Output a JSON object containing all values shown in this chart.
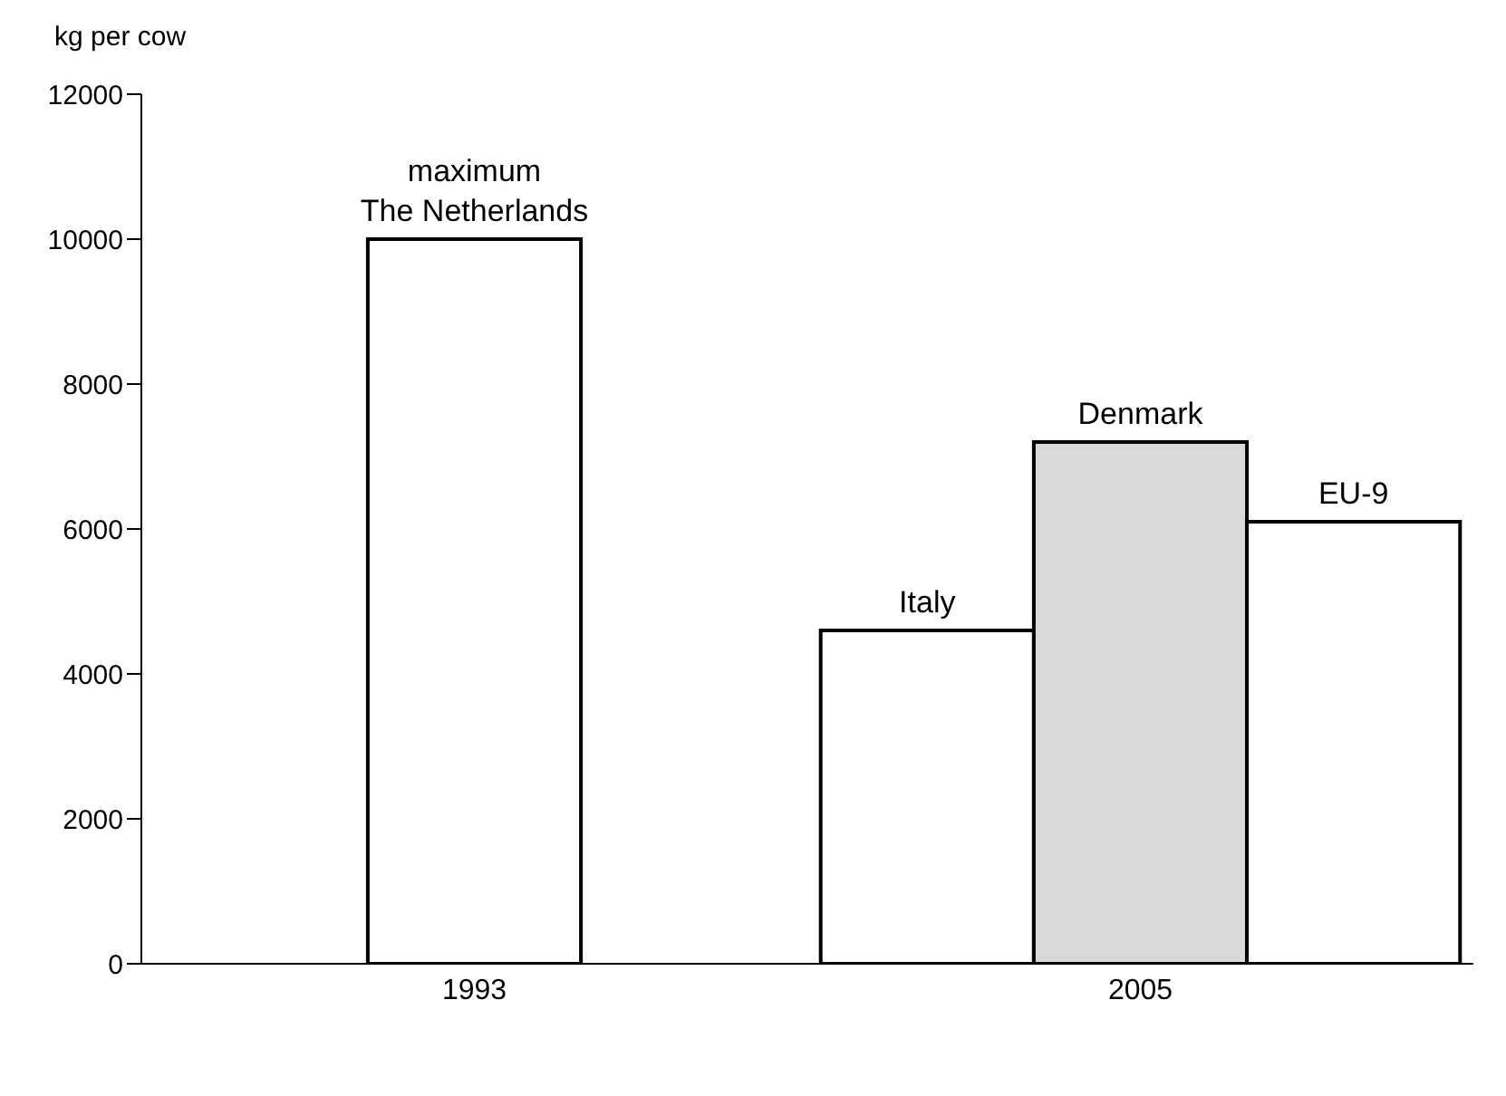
{
  "chart_data": {
    "type": "bar",
    "ylabel": "kg per cow",
    "categories": [
      "1993",
      "2005"
    ],
    "series": [
      {
        "name": "maximum\nThe Netherlands",
        "color": "#ffffff",
        "values": [
          10000,
          null
        ]
      },
      {
        "name": "Italy",
        "color": "#ffffff",
        "values": [
          null,
          4600
        ]
      },
      {
        "name": "Denmark",
        "color": "#d9d9d9",
        "values": [
          null,
          7200
        ]
      },
      {
        "name": "EU-9",
        "color": "#ffffff",
        "values": [
          null,
          6100
        ]
      }
    ],
    "ylim": [
      0,
      12000
    ],
    "yticks": [
      0,
      2000,
      4000,
      6000,
      8000,
      10000,
      12000
    ],
    "grid": false,
    "legend": false
  }
}
